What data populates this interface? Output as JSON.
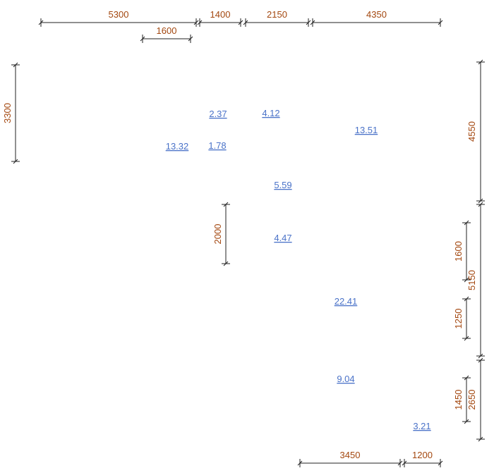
{
  "dimensions": [
    {
      "label": "5300"
    },
    {
      "label": "1400"
    },
    {
      "label": "2150"
    },
    {
      "label": "4350"
    },
    {
      "label": "1600"
    },
    {
      "label": "3300"
    },
    {
      "label": "4550"
    },
    {
      "label": "5150"
    },
    {
      "label": "2650"
    },
    {
      "label": "1600"
    },
    {
      "label": "1250"
    },
    {
      "label": "1450"
    },
    {
      "label": "2000"
    },
    {
      "label": "3450"
    },
    {
      "label": "1200"
    }
  ],
  "areas": [
    {
      "label": "2.37"
    },
    {
      "label": "4.12"
    },
    {
      "label": "13.51"
    },
    {
      "label": "13.32"
    },
    {
      "label": "1.78"
    },
    {
      "label": "5.59"
    },
    {
      "label": "4.47"
    },
    {
      "label": "22.41"
    },
    {
      "label": "9.04"
    },
    {
      "label": "3.21"
    }
  ]
}
